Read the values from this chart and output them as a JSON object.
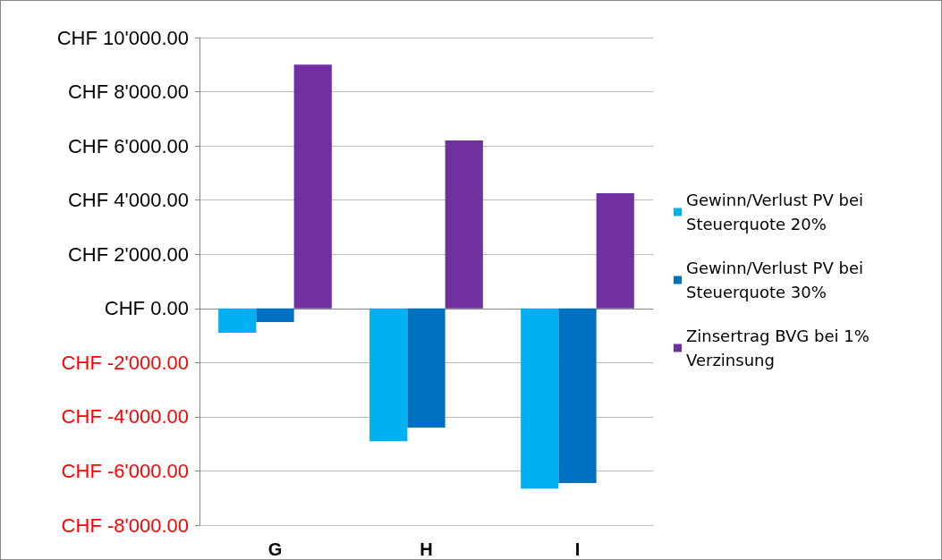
{
  "chart_data": {
    "type": "bar",
    "categories": [
      "G",
      "H",
      "I"
    ],
    "series": [
      {
        "name": "Gewinn/Verlust PV bei Steuerquote 20%",
        "color": "#00b0f0",
        "values": [
          -900,
          -4900,
          -6650
        ]
      },
      {
        "name": "Gewinn/Verlust PV bei Steuerquote 30%",
        "color": "#0070c0",
        "values": [
          -500,
          -4400,
          -6450
        ]
      },
      {
        "name": "Zinsertrag BVG bei 1% Verzinsung",
        "color": "#7030a0",
        "values": [
          9000,
          6200,
          4250
        ]
      }
    ],
    "ylim": [
      -8000,
      10000
    ],
    "yticks": [
      {
        "value": -8000,
        "label": "CHF -8'000.00"
      },
      {
        "value": -6000,
        "label": "CHF -6'000.00"
      },
      {
        "value": -4000,
        "label": "CHF -4'000.00"
      },
      {
        "value": -2000,
        "label": "CHF -2'000.00"
      },
      {
        "value": 0,
        "label": "CHF 0.00"
      },
      {
        "value": 2000,
        "label": "CHF 2'000.00"
      },
      {
        "value": 4000,
        "label": "CHF 4'000.00"
      },
      {
        "value": 6000,
        "label": "CHF 6'000.00"
      },
      {
        "value": 8000,
        "label": "CHF 8'000.00"
      },
      {
        "value": 10000,
        "label": "CHF 10'000.00"
      }
    ],
    "grid": "y",
    "legend": "right"
  }
}
